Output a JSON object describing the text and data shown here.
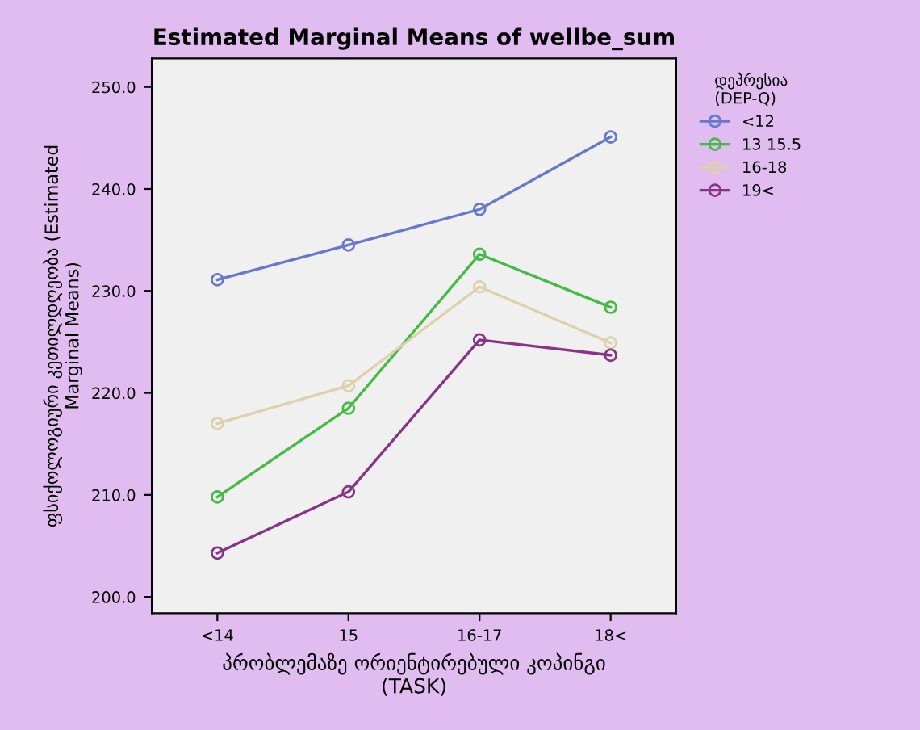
{
  "chart_data": {
    "type": "line",
    "title": "Estimated Marginal Means of wellbe_sum",
    "xlabel": "პრობლემაზე ორიენტირებული კოპინგი\n(TASK)",
    "ylabel": "ფსიქოლოგიური კეთილდღეობა (Estimated\nMarginal Means)",
    "legend_title": "დეპრესია\n(DEP-Q)",
    "categories": [
      "<14",
      "15",
      "16-17",
      "18<"
    ],
    "series": [
      {
        "name": "<12",
        "color": "#6677cc",
        "values": [
          231.1,
          234.5,
          238.0,
          245.1
        ]
      },
      {
        "name": "13 15.5",
        "color": "#44bb44",
        "values": [
          209.8,
          218.5,
          233.6,
          228.4
        ]
      },
      {
        "name": "16-18",
        "color": "#ddd0aa",
        "values": [
          217.0,
          220.7,
          230.4,
          224.9
        ]
      },
      {
        "name": "19<",
        "color": "#883388",
        "values": [
          204.3,
          210.3,
          225.2,
          223.7
        ]
      }
    ],
    "ylim": [
      198.4,
      252.8
    ],
    "yticks": [
      {
        "value": 200,
        "label": "200.0"
      },
      {
        "value": 210,
        "label": "210.0"
      },
      {
        "value": 220,
        "label": "220.0"
      },
      {
        "value": 230,
        "label": "230.0"
      },
      {
        "value": 240,
        "label": "240.0"
      },
      {
        "value": 250,
        "label": "250.0"
      }
    ],
    "grid": false,
    "legend": "right",
    "marker": "circle",
    "line_style": "solid"
  }
}
